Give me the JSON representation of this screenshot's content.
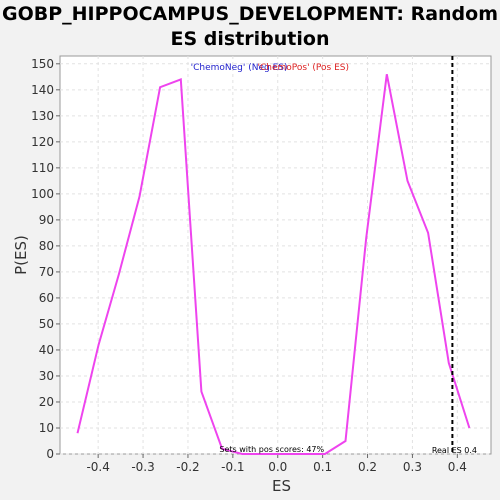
{
  "chart_data": {
    "type": "line",
    "title": "GOBP_HIPPOCAMPUS_DEVELOPMENT: Random ES distribution",
    "xlabel": "ES",
    "ylabel": "P(ES)",
    "xlim": [
      -0.485,
      0.475
    ],
    "ylim": [
      0,
      153
    ],
    "xticks": [
      -0.4,
      -0.3,
      -0.2,
      -0.1,
      0.0,
      0.1,
      0.2,
      0.3,
      0.4
    ],
    "xtick_labels": [
      "-0.4",
      "-0.3",
      "-0.2",
      "-0.1",
      "0.0",
      "0.1",
      "0.2",
      "0.3",
      "0.4"
    ],
    "yticks": [
      0,
      10,
      20,
      30,
      40,
      50,
      60,
      70,
      80,
      90,
      100,
      110,
      120,
      130,
      140,
      150
    ],
    "ytick_labels": [
      "0",
      "10",
      "20",
      "30",
      "40",
      "50",
      "60",
      "70",
      "80",
      "90",
      "100",
      "110",
      "120",
      "130",
      "140",
      "150"
    ],
    "grid": true,
    "series": [
      {
        "color": "#ee44ee",
        "x": [
          -0.446,
          -0.399,
          -0.354,
          -0.308,
          -0.262,
          -0.216,
          -0.17,
          -0.124,
          -0.079,
          -0.033,
          0.013,
          0.059,
          0.105,
          0.151,
          0.197,
          0.243,
          0.289,
          0.335,
          0.381,
          0.427
        ],
        "y": [
          8,
          42,
          69,
          99,
          141,
          144,
          24,
          2,
          0,
          0,
          0,
          0,
          0,
          5,
          83,
          146,
          105,
          85,
          35,
          10
        ]
      }
    ],
    "legend": [
      {
        "label": "'ChemoNeg' (Neg ES)",
        "color": "#2222cc"
      },
      {
        "label": "'ChemoPos' (Pos ES)",
        "color": "#dd2222"
      }
    ],
    "legend_placement": "top-center",
    "real_es": 0.389,
    "real_es_label": "Real ES 0.4",
    "pos_scores_label": "Sets with pos scores: 47%"
  }
}
